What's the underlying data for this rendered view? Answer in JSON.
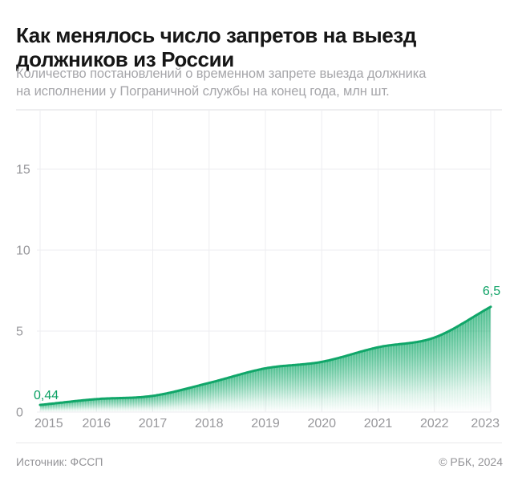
{
  "header": {
    "title_lines": [
      "Как менялось число запретов на выезд",
      "должников из России"
    ],
    "subtitle_lines": [
      "Количество постановлений о временном запрете выезда должника",
      "на исполнении у Пограничной службы на конец года, млн шт."
    ]
  },
  "chart_data": {
    "type": "area",
    "title": "Как менялось число запретов на выезд должников из России",
    "subtitle": "Количество постановлений о временном запрете выезда должника на исполнении у Пограничной службы на конец года, млн шт.",
    "categories": [
      "2015",
      "2016",
      "2017",
      "2018",
      "2019",
      "2020",
      "2021",
      "2022",
      "2023"
    ],
    "series": [
      {
        "name": "Постановления о временном запрете выезда, млн шт.",
        "values": [
          0.44,
          0.8,
          1.0,
          1.8,
          2.7,
          3.1,
          4.0,
          4.6,
          6.5
        ]
      }
    ],
    "point_labels": [
      {
        "index": 0,
        "text": "0,44"
      },
      {
        "index": 8,
        "text": "6,5"
      }
    ],
    "yticks": [
      0,
      5,
      10,
      15
    ],
    "ylim": [
      0,
      18.7
    ],
    "xlabel": "",
    "ylabel": "",
    "grid": true,
    "legend": false,
    "colors": {
      "line": "#10a669",
      "value_label": "#0ba164",
      "grid": "#ededf0",
      "frame": "#e9e9ec",
      "axis_text": "#97979b",
      "area": "#0fa868"
    }
  },
  "footer": {
    "source": "Источник: ФССП",
    "copyright": "© РБК, 2024"
  }
}
